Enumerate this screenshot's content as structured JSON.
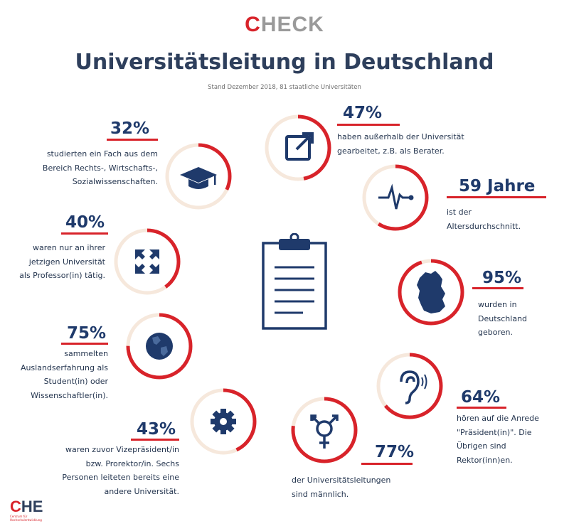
{
  "brand": {
    "first": "C",
    "rest": "HECK"
  },
  "title": "Universitätsleitung in Deutschland",
  "subtitle": "Stand Dezember 2018, 81 staatliche Universitäten",
  "stats": {
    "s47": {
      "pct": "47%",
      "lines": [
        "haben außerhalb der Universität",
        "gearbeitet, z.B. als Berater."
      ]
    },
    "s32": {
      "pct": "32%",
      "lines": [
        "studierten ein Fach aus dem",
        "Bereich Rechts-, Wirtschafts-,",
        "Sozialwissenschaften."
      ]
    },
    "s59": {
      "pct": "59 Jahre",
      "lines": [
        "ist der",
        "Altersdurchschnitt."
      ]
    },
    "s40": {
      "pct": "40%",
      "lines": [
        "waren nur an ihrer",
        "jetzigen Universität",
        "als Professor(in) tätig."
      ]
    },
    "s95": {
      "pct": "95%",
      "lines": [
        "wurden in",
        "Deutschland",
        "geboren."
      ]
    },
    "s75": {
      "pct": "75%",
      "lines": [
        "sammelten",
        "Auslandserfahrung als",
        "Student(in) oder",
        "Wissenschaftler(in)."
      ]
    },
    "s64": {
      "pct": "64%",
      "lines": [
        "hören auf die Anrede",
        "\"Präsident(in)\". Die",
        "Übrigen sind",
        "Rektor(inn)en."
      ]
    },
    "s43": {
      "pct": "43%",
      "lines": [
        "waren zuvor Vizepräsident/in",
        "bzw. Prorektor/in. Sechs",
        "Personen leiteten bereits eine",
        "andere Universität."
      ]
    },
    "s77": {
      "pct": "77%",
      "lines": [
        "der Universitätsleitungen",
        "sind männlich."
      ]
    }
  },
  "rings": [
    {
      "id": "ring-47",
      "value": 0.47,
      "icon": "external-link-icon"
    },
    {
      "id": "ring-32",
      "value": 0.32,
      "icon": "graduation-cap-icon"
    },
    {
      "id": "ring-59",
      "value": 0.59,
      "icon": "heartbeat-icon"
    },
    {
      "id": "ring-40",
      "value": 0.4,
      "icon": "expand-arrows-icon"
    },
    {
      "id": "ring-95",
      "value": 0.95,
      "icon": "germany-map-icon"
    },
    {
      "id": "ring-75",
      "value": 0.75,
      "icon": "globe-icon"
    },
    {
      "id": "ring-64",
      "value": 0.64,
      "icon": "ear-icon"
    },
    {
      "id": "ring-43",
      "value": 0.43,
      "icon": "gear-icon"
    },
    {
      "id": "ring-77",
      "value": 0.77,
      "icon": "gender-symbol-icon"
    }
  ],
  "center_icon": "clipboard-icon",
  "logo": {
    "c": "C",
    "he": "HE",
    "sub": "Centrum für Hochschulentwicklung"
  },
  "colors": {
    "ring_bg": "#f6e8dc",
    "ring_fg": "#d8232a",
    "icon": "#1f3a6b",
    "text": "#24354f"
  }
}
